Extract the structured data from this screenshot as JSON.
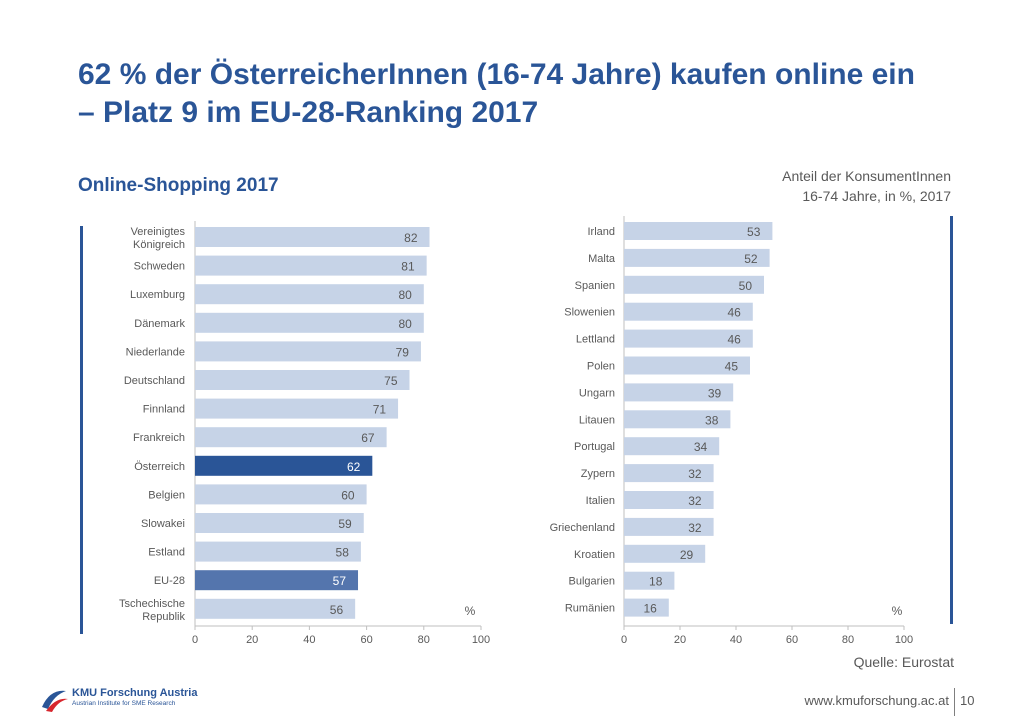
{
  "title": {
    "line1": "62 % der ÖsterreicherInnen (16-74 Jahre) kaufen online ein",
    "line2": "– Platz 9 im EU-28-Ranking 2017"
  },
  "subtitle": "Online-Shopping 2017",
  "note": {
    "line1": "Anteil der KonsumentInnen",
    "line2": "16-74 Jahre, in %, 2017"
  },
  "source": "Quelle: Eurostat",
  "footer": {
    "url": "www.kmuforschung.ac.at",
    "page": "10",
    "logo_name": "KMU Forschung Austria",
    "logo_sub": "Austrian Institute for SME Research"
  },
  "colors": {
    "bar": "#c6d3e7",
    "highlight": "#2a5597",
    "eu": "#5475ad",
    "accent": "#2a5597"
  },
  "chart_data": [
    {
      "type": "bar",
      "orientation": "horizontal",
      "unit_label": "%",
      "xlim": [
        0,
        100
      ],
      "xticks": [
        0,
        20,
        40,
        60,
        80,
        100
      ],
      "grid": false,
      "categories": [
        "Vereinigtes Königreich",
        "Schweden",
        "Luxemburg",
        "Dänemark",
        "Niederlande",
        "Deutschland",
        "Finnland",
        "Frankreich",
        "Österreich",
        "Belgien",
        "Slowakei",
        "Estland",
        "EU-28",
        "Tschechische Republik"
      ],
      "values": [
        82,
        81,
        80,
        80,
        79,
        75,
        71,
        67,
        62,
        60,
        59,
        58,
        57,
        56
      ],
      "highlight": [
        "Österreich"
      ],
      "secondary_highlight": [
        "EU-28"
      ]
    },
    {
      "type": "bar",
      "orientation": "horizontal",
      "unit_label": "%",
      "xlim": [
        0,
        100
      ],
      "xticks": [
        0,
        20,
        40,
        60,
        80,
        100
      ],
      "grid": false,
      "categories": [
        "Irland",
        "Malta",
        "Spanien",
        "Slowenien",
        "Lettland",
        "Polen",
        "Ungarn",
        "Litauen",
        "Portugal",
        "Zypern",
        "Italien",
        "Griechenland",
        "Kroatien",
        "Bulgarien",
        "Rumänien"
      ],
      "values": [
        53,
        52,
        50,
        46,
        46,
        45,
        39,
        38,
        34,
        32,
        32,
        32,
        29,
        18,
        16
      ],
      "highlight": [],
      "secondary_highlight": []
    }
  ]
}
